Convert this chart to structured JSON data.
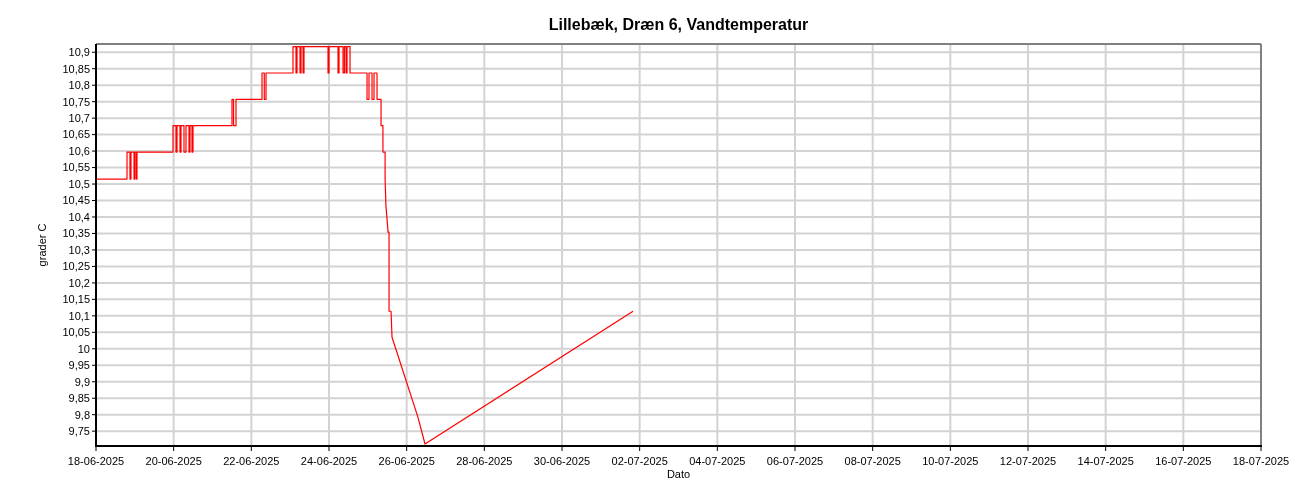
{
  "chart_data": {
    "type": "line",
    "title": "Lillebæk, Dræn 6, Vandtemperatur",
    "xlabel": "Dato",
    "ylabel": "grader C",
    "x": [
      "2025-06-18T00:00",
      "2025-06-18T19:10",
      "2025-06-18T19:10",
      "2025-06-18T21:00",
      "2025-06-18T21:00",
      "2025-06-18T21:37",
      "2025-06-18T21:37",
      "2025-06-18T23:30",
      "2025-06-18T23:30",
      "2025-06-19T00:06",
      "2025-06-19T00:06",
      "2025-06-19T01:00",
      "2025-06-19T01:00",
      "2025-06-19T01:20",
      "2025-06-19T01:20",
      "2025-06-19T23:36",
      "2025-06-19T23:36",
      "2025-06-20T01:26",
      "2025-06-20T01:26",
      "2025-06-20T02:04",
      "2025-06-20T02:04",
      "2025-06-20T03:55",
      "2025-06-20T03:55",
      "2025-06-20T04:32",
      "2025-06-20T04:32",
      "2025-06-20T06:23",
      "2025-06-20T06:23",
      "2025-06-20T07:37",
      "2025-06-20T07:37",
      "2025-06-20T09:29",
      "2025-06-20T09:29",
      "2025-06-20T10:06",
      "2025-06-20T10:06",
      "2025-06-20T11:20",
      "2025-06-20T11:20",
      "2025-06-20T11:57",
      "2025-06-20T11:57",
      "2025-06-21T12:03",
      "2025-06-21T12:03",
      "2025-06-21T13:00",
      "2025-06-21T13:00",
      "2025-06-21T14:31",
      "2025-06-21T14:31",
      "2025-06-22T06:36",
      "2025-06-22T06:36",
      "2025-06-22T08:00",
      "2025-06-22T08:00",
      "2025-06-22T09:04",
      "2025-06-22T09:04",
      "2025-06-23T01:45",
      "2025-06-23T01:45",
      "2025-06-23T03:37",
      "2025-06-23T03:37",
      "2025-06-23T04:14",
      "2025-06-23T04:14",
      "2025-06-23T06:05",
      "2025-06-23T06:05",
      "2025-06-23T06:42",
      "2025-06-23T06:42",
      "2025-06-23T08:00",
      "2025-06-23T08:00",
      "2025-06-23T08:33",
      "2025-06-23T08:33",
      "2025-06-23T23:24",
      "2025-06-23T23:24",
      "2025-06-24T00:01",
      "2025-06-24T00:01",
      "2025-06-24T05:35",
      "2025-06-24T05:35",
      "2025-06-24T06:12",
      "2025-06-24T06:12",
      "2025-06-24T08:40",
      "2025-06-24T08:40",
      "2025-06-24T09:30",
      "2025-06-24T09:30",
      "2025-06-24T10:31",
      "2025-06-24T10:31",
      "2025-06-24T11:08",
      "2025-06-24T11:08",
      "2025-06-24T12:59",
      "2025-06-24T12:59",
      "2025-06-24T23:30",
      "2025-06-24T23:30",
      "2025-06-25T00:43",
      "2025-06-25T00:43",
      "2025-06-25T02:35",
      "2025-06-25T02:35",
      "2025-06-25T03:49",
      "2025-06-25T03:49",
      "2025-06-25T05:41",
      "2025-06-25T05:41",
      "2025-06-25T08:10",
      "2025-06-25T08:10",
      "2025-06-25T09:20",
      "2025-06-25T09:20",
      "2025-06-25T10:40",
      "2025-06-25T10:40",
      "2025-06-25T11:10",
      "2025-06-25T12:30",
      "2025-06-25T13:06",
      "2025-06-25T13:06",
      "2025-06-25T14:20",
      "2025-06-25T14:57",
      "2025-06-26T07:00",
      "2025-06-26T11:20",
      "2025-07-01T19:55"
    ],
    "series": [
      {
        "color": "#ff0000",
        "values": [
          10.515,
          10.515,
          10.597,
          10.597,
          10.515,
          10.515,
          10.597,
          10.597,
          10.515,
          10.515,
          10.597,
          10.597,
          10.515,
          10.515,
          10.597,
          10.597,
          10.677,
          10.677,
          10.597,
          10.597,
          10.677,
          10.677,
          10.597,
          10.597,
          10.677,
          10.677,
          10.597,
          10.597,
          10.677,
          10.677,
          10.597,
          10.597,
          10.677,
          10.677,
          10.597,
          10.597,
          10.677,
          10.677,
          10.757,
          10.757,
          10.677,
          10.677,
          10.757,
          10.757,
          10.837,
          10.837,
          10.757,
          10.757,
          10.837,
          10.837,
          10.917,
          10.917,
          10.837,
          10.837,
          10.917,
          10.917,
          10.837,
          10.837,
          10.917,
          10.917,
          10.837,
          10.837,
          10.917,
          10.917,
          10.837,
          10.837,
          10.917,
          10.917,
          10.837,
          10.837,
          10.917,
          10.917,
          10.837,
          10.837,
          10.917,
          10.917,
          10.837,
          10.837,
          10.917,
          10.917,
          10.837,
          10.837,
          10.757,
          10.757,
          10.837,
          10.837,
          10.757,
          10.757,
          10.837,
          10.837,
          10.757,
          10.757,
          10.677,
          10.677,
          10.597,
          10.597,
          10.515,
          10.436,
          10.354,
          10.354,
          10.114,
          10.114,
          10.035,
          9.792,
          9.711,
          10.114
        ]
      }
    ],
    "xlim": [
      "2025-06-18",
      "2025-07-18"
    ],
    "xticks": [
      {
        "value": "2025-06-18",
        "label": "18-06-2025"
      },
      {
        "value": "2025-06-20",
        "label": "20-06-2025"
      },
      {
        "value": "2025-06-22",
        "label": "22-06-2025"
      },
      {
        "value": "2025-06-24",
        "label": "24-06-2025"
      },
      {
        "value": "2025-06-26",
        "label": "26-06-2025"
      },
      {
        "value": "2025-06-28",
        "label": "28-06-2025"
      },
      {
        "value": "2025-06-30",
        "label": "30-06-2025"
      },
      {
        "value": "2025-07-02",
        "label": "02-07-2025"
      },
      {
        "value": "2025-07-04",
        "label": "04-07-2025"
      },
      {
        "value": "2025-07-06",
        "label": "06-07-2025"
      },
      {
        "value": "2025-07-08",
        "label": "08-07-2025"
      },
      {
        "value": "2025-07-10",
        "label": "10-07-2025"
      },
      {
        "value": "2025-07-12",
        "label": "12-07-2025"
      },
      {
        "value": "2025-07-14",
        "label": "14-07-2025"
      },
      {
        "value": "2025-07-16",
        "label": "16-07-2025"
      },
      {
        "value": "2025-07-18",
        "label": "18-07-2025"
      }
    ],
    "ylim": [
      9.705,
      10.925
    ],
    "yticks": [
      {
        "value": 9.75,
        "label": "9,75"
      },
      {
        "value": 9.8,
        "label": "9,8"
      },
      {
        "value": 9.85,
        "label": "9,85"
      },
      {
        "value": 9.9,
        "label": "9,9"
      },
      {
        "value": 9.95,
        "label": "9,95"
      },
      10,
      {
        "value": 10.05,
        "label": "10,05"
      },
      {
        "value": 10.1,
        "label": "10,1"
      },
      {
        "value": 10.15,
        "label": "10,15"
      },
      {
        "value": 10.2,
        "label": "10,2"
      },
      {
        "value": 10.25,
        "label": "10,25"
      },
      {
        "value": 10.3,
        "label": "10,3"
      },
      {
        "value": 10.35,
        "label": "10,35"
      },
      {
        "value": 10.4,
        "label": "10,4"
      },
      {
        "value": 10.45,
        "label": "10,45"
      },
      {
        "value": 10.5,
        "label": "10,5"
      },
      {
        "value": 10.55,
        "label": "10,55"
      },
      {
        "value": 10.6,
        "label": "10,6"
      },
      {
        "value": 10.65,
        "label": "10,65"
      },
      {
        "value": 10.7,
        "label": "10,7"
      },
      {
        "value": 10.75,
        "label": "10,75"
      },
      {
        "value": 10.8,
        "label": "10,8"
      },
      {
        "value": 10.85,
        "label": "10,85"
      },
      {
        "value": 10.9,
        "label": "10,9"
      }
    ],
    "grid": true,
    "marker": "none",
    "line_style": "solid"
  }
}
